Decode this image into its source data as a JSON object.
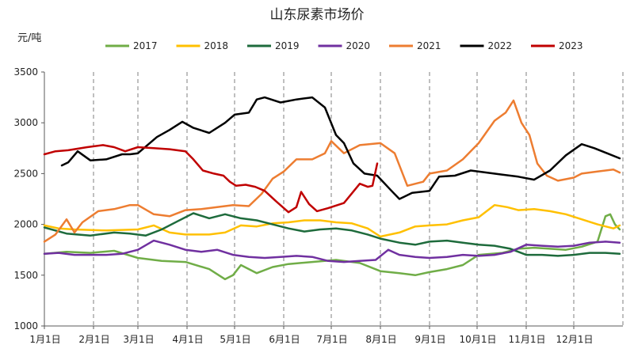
{
  "chart_data": {
    "type": "line",
    "title": "山东尿素市场价",
    "ylabel": "元/吨",
    "xlabel": "",
    "ylim": [
      1000,
      3500
    ],
    "yticks": [
      1000,
      1500,
      2000,
      2500,
      3000,
      3500
    ],
    "x_unit": "day_of_year",
    "x_range": [
      1,
      366
    ],
    "month_ticks": [
      {
        "label": "1月1日",
        "x": 1
      },
      {
        "label": "2月1日",
        "x": 32
      },
      {
        "label": "3月1日",
        "x": 60
      },
      {
        "label": "4月1日",
        "x": 91
      },
      {
        "label": "5月1日",
        "x": 121
      },
      {
        "label": "6月1日",
        "x": 152
      },
      {
        "label": "7月1日",
        "x": 182
      },
      {
        "label": "8月1日",
        "x": 213
      },
      {
        "label": "9月1日",
        "x": 244
      },
      {
        "label": "10月1日",
        "x": 274
      },
      {
        "label": "11月1日",
        "x": 305
      },
      {
        "label": "12月1日",
        "x": 335
      }
    ],
    "grid": "vertical dashed at month starts",
    "legend_position": "top",
    "series": [
      {
        "name": "2017",
        "color": "#70AD47",
        "points": [
          [
            1,
            1710
          ],
          [
            15,
            1730
          ],
          [
            30,
            1720
          ],
          [
            45,
            1740
          ],
          [
            60,
            1670
          ],
          [
            75,
            1640
          ],
          [
            90,
            1630
          ],
          [
            105,
            1560
          ],
          [
            115,
            1460
          ],
          [
            120,
            1500
          ],
          [
            125,
            1600
          ],
          [
            135,
            1520
          ],
          [
            145,
            1580
          ],
          [
            155,
            1610
          ],
          [
            170,
            1630
          ],
          [
            185,
            1650
          ],
          [
            200,
            1620
          ],
          [
            213,
            1540
          ],
          [
            225,
            1520
          ],
          [
            235,
            1500
          ],
          [
            244,
            1530
          ],
          [
            255,
            1560
          ],
          [
            265,
            1600
          ],
          [
            275,
            1700
          ],
          [
            290,
            1720
          ],
          [
            300,
            1760
          ],
          [
            310,
            1770
          ],
          [
            320,
            1760
          ],
          [
            330,
            1750
          ],
          [
            340,
            1780
          ],
          [
            350,
            1830
          ],
          [
            355,
            2080
          ],
          [
            358,
            2100
          ],
          [
            361,
            2000
          ],
          [
            364,
            1950
          ]
        ]
      },
      {
        "name": "2018",
        "color": "#FFC000",
        "points": [
          [
            1,
            1990
          ],
          [
            10,
            1960
          ],
          [
            20,
            1950
          ],
          [
            40,
            1940
          ],
          [
            60,
            1950
          ],
          [
            70,
            1990
          ],
          [
            80,
            1920
          ],
          [
            90,
            1900
          ],
          [
            105,
            1900
          ],
          [
            115,
            1920
          ],
          [
            125,
            1990
          ],
          [
            135,
            1980
          ],
          [
            145,
            2010
          ],
          [
            155,
            2020
          ],
          [
            165,
            2040
          ],
          [
            175,
            2040
          ],
          [
            185,
            2020
          ],
          [
            195,
            2010
          ],
          [
            205,
            1960
          ],
          [
            213,
            1880
          ],
          [
            225,
            1920
          ],
          [
            235,
            1980
          ],
          [
            244,
            1990
          ],
          [
            255,
            2000
          ],
          [
            265,
            2040
          ],
          [
            275,
            2070
          ],
          [
            285,
            2190
          ],
          [
            293,
            2170
          ],
          [
            300,
            2140
          ],
          [
            310,
            2150
          ],
          [
            320,
            2130
          ],
          [
            330,
            2100
          ],
          [
            340,
            2050
          ],
          [
            350,
            2000
          ],
          [
            360,
            1960
          ],
          [
            364,
            1990
          ]
        ]
      },
      {
        "name": "2019",
        "color": "#1E6B3C",
        "points": [
          [
            1,
            1970
          ],
          [
            15,
            1910
          ],
          [
            30,
            1890
          ],
          [
            45,
            1920
          ],
          [
            55,
            1910
          ],
          [
            65,
            1890
          ],
          [
            75,
            1950
          ],
          [
            85,
            2030
          ],
          [
            95,
            2110
          ],
          [
            105,
            2060
          ],
          [
            115,
            2100
          ],
          [
            125,
            2060
          ],
          [
            135,
            2040
          ],
          [
            145,
            2000
          ],
          [
            155,
            1960
          ],
          [
            165,
            1930
          ],
          [
            175,
            1950
          ],
          [
            185,
            1960
          ],
          [
            195,
            1940
          ],
          [
            205,
            1900
          ],
          [
            213,
            1860
          ],
          [
            225,
            1820
          ],
          [
            235,
            1800
          ],
          [
            244,
            1830
          ],
          [
            255,
            1840
          ],
          [
            265,
            1820
          ],
          [
            275,
            1800
          ],
          [
            285,
            1790
          ],
          [
            295,
            1760
          ],
          [
            305,
            1700
          ],
          [
            315,
            1700
          ],
          [
            325,
            1690
          ],
          [
            335,
            1700
          ],
          [
            345,
            1720
          ],
          [
            355,
            1720
          ],
          [
            364,
            1710
          ]
        ]
      },
      {
        "name": "2020",
        "color": "#7030A0",
        "points": [
          [
            1,
            1710
          ],
          [
            10,
            1720
          ],
          [
            20,
            1700
          ],
          [
            30,
            1700
          ],
          [
            40,
            1700
          ],
          [
            50,
            1710
          ],
          [
            60,
            1750
          ],
          [
            70,
            1840
          ],
          [
            80,
            1800
          ],
          [
            90,
            1750
          ],
          [
            100,
            1730
          ],
          [
            110,
            1750
          ],
          [
            120,
            1700
          ],
          [
            130,
            1680
          ],
          [
            140,
            1670
          ],
          [
            150,
            1680
          ],
          [
            160,
            1690
          ],
          [
            170,
            1680
          ],
          [
            180,
            1640
          ],
          [
            190,
            1630
          ],
          [
            200,
            1640
          ],
          [
            210,
            1650
          ],
          [
            218,
            1750
          ],
          [
            225,
            1700
          ],
          [
            235,
            1680
          ],
          [
            244,
            1670
          ],
          [
            255,
            1680
          ],
          [
            265,
            1700
          ],
          [
            275,
            1690
          ],
          [
            285,
            1700
          ],
          [
            295,
            1730
          ],
          [
            305,
            1800
          ],
          [
            315,
            1790
          ],
          [
            325,
            1780
          ],
          [
            335,
            1790
          ],
          [
            345,
            1820
          ],
          [
            355,
            1830
          ],
          [
            364,
            1820
          ]
        ]
      },
      {
        "name": "2021",
        "color": "#ED7D31",
        "points": [
          [
            1,
            1830
          ],
          [
            8,
            1900
          ],
          [
            15,
            2050
          ],
          [
            20,
            1920
          ],
          [
            25,
            2020
          ],
          [
            35,
            2130
          ],
          [
            45,
            2150
          ],
          [
            55,
            2190
          ],
          [
            60,
            2190
          ],
          [
            70,
            2100
          ],
          [
            80,
            2080
          ],
          [
            90,
            2140
          ],
          [
            100,
            2150
          ],
          [
            110,
            2170
          ],
          [
            120,
            2190
          ],
          [
            130,
            2180
          ],
          [
            138,
            2300
          ],
          [
            145,
            2450
          ],
          [
            152,
            2520
          ],
          [
            160,
            2640
          ],
          [
            170,
            2640
          ],
          [
            178,
            2700
          ],
          [
            182,
            2820
          ],
          [
            190,
            2700
          ],
          [
            200,
            2780
          ],
          [
            213,
            2800
          ],
          [
            222,
            2700
          ],
          [
            230,
            2380
          ],
          [
            240,
            2420
          ],
          [
            244,
            2500
          ],
          [
            255,
            2530
          ],
          [
            265,
            2640
          ],
          [
            275,
            2800
          ],
          [
            285,
            3020
          ],
          [
            292,
            3100
          ],
          [
            297,
            3220
          ],
          [
            302,
            3000
          ],
          [
            307,
            2880
          ],
          [
            312,
            2600
          ],
          [
            318,
            2480
          ],
          [
            325,
            2430
          ],
          [
            335,
            2460
          ],
          [
            340,
            2500
          ],
          [
            350,
            2520
          ],
          [
            360,
            2540
          ],
          [
            364,
            2510
          ]
        ]
      },
      {
        "name": "2022",
        "color": "#000000",
        "points": [
          [
            12,
            2580
          ],
          [
            16,
            2610
          ],
          [
            22,
            2720
          ],
          [
            30,
            2630
          ],
          [
            40,
            2640
          ],
          [
            50,
            2690
          ],
          [
            55,
            2690
          ],
          [
            60,
            2700
          ],
          [
            66,
            2780
          ],
          [
            72,
            2860
          ],
          [
            80,
            2930
          ],
          [
            88,
            3010
          ],
          [
            95,
            2950
          ],
          [
            105,
            2900
          ],
          [
            115,
            3000
          ],
          [
            121,
            3080
          ],
          [
            130,
            3100
          ],
          [
            135,
            3230
          ],
          [
            140,
            3250
          ],
          [
            150,
            3200
          ],
          [
            160,
            3230
          ],
          [
            170,
            3250
          ],
          [
            178,
            3150
          ],
          [
            185,
            2880
          ],
          [
            190,
            2800
          ],
          [
            196,
            2600
          ],
          [
            203,
            2500
          ],
          [
            211,
            2480
          ],
          [
            220,
            2330
          ],
          [
            225,
            2250
          ],
          [
            233,
            2310
          ],
          [
            244,
            2330
          ],
          [
            250,
            2470
          ],
          [
            260,
            2480
          ],
          [
            270,
            2530
          ],
          [
            280,
            2510
          ],
          [
            290,
            2490
          ],
          [
            300,
            2470
          ],
          [
            310,
            2440
          ],
          [
            320,
            2530
          ],
          [
            330,
            2680
          ],
          [
            340,
            2790
          ],
          [
            348,
            2750
          ],
          [
            356,
            2700
          ],
          [
            364,
            2650
          ]
        ]
      },
      {
        "name": "2023",
        "color": "#C00000",
        "points": [
          [
            1,
            2690
          ],
          [
            8,
            2720
          ],
          [
            16,
            2730
          ],
          [
            28,
            2760
          ],
          [
            38,
            2780
          ],
          [
            45,
            2760
          ],
          [
            52,
            2720
          ],
          [
            60,
            2760
          ],
          [
            70,
            2750
          ],
          [
            80,
            2740
          ],
          [
            90,
            2720
          ],
          [
            95,
            2640
          ],
          [
            101,
            2530
          ],
          [
            108,
            2500
          ],
          [
            114,
            2480
          ],
          [
            118,
            2420
          ],
          [
            122,
            2380
          ],
          [
            128,
            2390
          ],
          [
            134,
            2370
          ],
          [
            140,
            2330
          ],
          [
            147,
            2230
          ],
          [
            155,
            2120
          ],
          [
            160,
            2170
          ],
          [
            163,
            2320
          ],
          [
            168,
            2200
          ],
          [
            173,
            2130
          ],
          [
            180,
            2160
          ],
          [
            190,
            2210
          ],
          [
            200,
            2400
          ],
          [
            205,
            2370
          ],
          [
            208,
            2380
          ],
          [
            211,
            2600
          ]
        ]
      }
    ]
  }
}
